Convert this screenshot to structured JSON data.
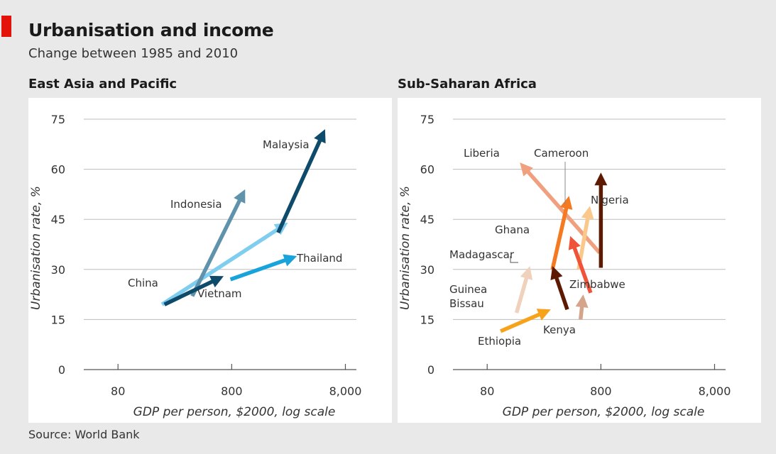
{
  "title": "Urbanisation and income",
  "subtitle": "Change between 1985 and 2010",
  "source": "Source: World Bank",
  "colors": {
    "accent": "#e3120b",
    "grid": "#bdbdbd",
    "background": "#e9e9e9"
  },
  "chart_data": [
    {
      "type": "line",
      "title": "East Asia and Pacific",
      "xlabel": "GDP per person, $2000, log scale",
      "ylabel": "Urbanisation rate, %",
      "x_scale": "log",
      "xlim": [
        40,
        10000
      ],
      "ylim": [
        0,
        75
      ],
      "x_ticks": [
        80,
        800,
        8000
      ],
      "x_tick_labels": [
        "80",
        "800",
        "8,000"
      ],
      "y_ticks": [
        0,
        15,
        30,
        45,
        60,
        75
      ],
      "y_tick_labels": [
        "0",
        "15",
        "30",
        "45",
        "60",
        "75"
      ],
      "grid": true,
      "series": [
        {
          "name": "China",
          "color": "#7fcdef",
          "from": {
            "x": 195,
            "y": 19.5
          },
          "to": {
            "x": 2500,
            "y": 44
          }
        },
        {
          "name": "Indonesia",
          "color": "#5f93ac",
          "from": {
            "x": 360,
            "y": 22
          },
          "to": {
            "x": 1050,
            "y": 54
          }
        },
        {
          "name": "Malaysia",
          "color": "#0e4a6a",
          "from": {
            "x": 2050,
            "y": 41
          },
          "to": {
            "x": 5300,
            "y": 72
          }
        },
        {
          "name": "Thailand",
          "color": "#18a4db",
          "from": {
            "x": 780,
            "y": 27
          },
          "to": {
            "x": 3000,
            "y": 34
          }
        },
        {
          "name": "Vietnam",
          "color": "#0e4a6a",
          "from": {
            "x": 205,
            "y": 19.5
          },
          "to": {
            "x": 680,
            "y": 28
          }
        }
      ]
    },
    {
      "type": "line",
      "title": "Sub-Saharan Africa",
      "xlabel": "GDP per person, $2000, log scale",
      "ylabel": "Urbanisation rate, %",
      "x_scale": "log",
      "xlim": [
        40,
        10000
      ],
      "ylim": [
        0,
        75
      ],
      "x_ticks": [
        80,
        800,
        8000
      ],
      "x_tick_labels": [
        "80",
        "800",
        "8,000"
      ],
      "y_ticks": [
        0,
        15,
        30,
        45,
        60,
        75
      ],
      "y_tick_labels": [
        "0",
        "15",
        "30",
        "45",
        "60",
        "75"
      ],
      "grid": true,
      "series": [
        {
          "name": "Liberia",
          "color": "#f0a07f",
          "from": {
            "x": 780,
            "y": 35
          },
          "to": {
            "x": 155,
            "y": 62
          }
        },
        {
          "name": "Cameroon",
          "color": "#fbc88c",
          "from": {
            "x": 510,
            "y": 30
          },
          "to": {
            "x": 640,
            "y": 49
          }
        },
        {
          "name": "Nigeria",
          "color": "#5e1a00",
          "from": {
            "x": 800,
            "y": 30.5
          },
          "to": {
            "x": 800,
            "y": 59
          }
        },
        {
          "name": "Ghana",
          "color": "#f47920",
          "from": {
            "x": 300,
            "y": 30
          },
          "to": {
            "x": 420,
            "y": 52
          }
        },
        {
          "name": "Madagascar",
          "color": "#5e1a00",
          "from": {
            "x": 405,
            "y": 18
          },
          "to": {
            "x": 300,
            "y": 31
          }
        },
        {
          "name": "Zimbabwe",
          "color": "#ef5339",
          "from": {
            "x": 650,
            "y": 23
          },
          "to": {
            "x": 430,
            "y": 40
          }
        },
        {
          "name": "Guinea Bissau",
          "color": "#f0d1bc",
          "from": {
            "x": 145,
            "y": 17
          },
          "to": {
            "x": 190,
            "y": 31
          }
        },
        {
          "name": "Kenya",
          "color": "#d4a58a",
          "from": {
            "x": 530,
            "y": 15
          },
          "to": {
            "x": 560,
            "y": 22.5
          }
        },
        {
          "name": "Ethiopia",
          "color": "#f7a21b",
          "from": {
            "x": 105,
            "y": 11.5
          },
          "to": {
            "x": 290,
            "y": 18
          }
        }
      ]
    }
  ]
}
